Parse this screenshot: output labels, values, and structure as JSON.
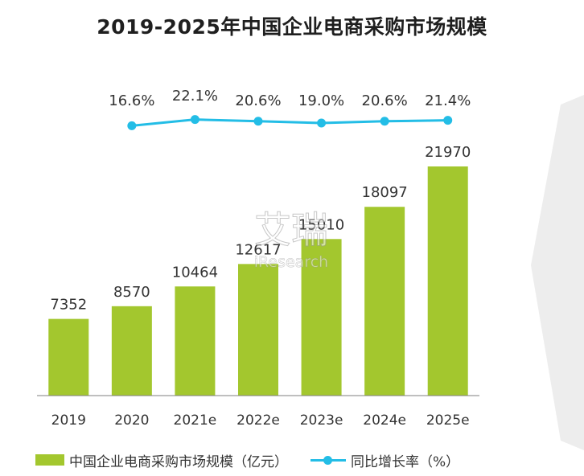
{
  "title": "2019-2025年中国企业电商采购市场规模",
  "legend": {
    "bar_label": "中国企业电商采购市场规模（亿元）",
    "line_label": "同比增长率（%）"
  },
  "watermark": {
    "main": "艾瑞",
    "sub": "iResearch"
  },
  "colors": {
    "bar": "#a3c72e",
    "line": "#23bde6",
    "axis": "#7f7f7f",
    "side_panel": "#ededed"
  },
  "chart_data": {
    "type": "bar",
    "title": "2019-2025年中国企业电商采购市场规模",
    "categories": [
      "2019",
      "2020",
      "2021e",
      "2022e",
      "2023e",
      "2024e",
      "2025e"
    ],
    "series": [
      {
        "name": "中国企业电商采购市场规模（亿元）",
        "type": "bar",
        "values": [
          7352,
          8570,
          10464,
          12617,
          15010,
          18097,
          21970
        ],
        "labels": [
          "7352",
          "8570",
          "10464",
          "12617",
          "15010",
          "18097",
          "21970"
        ]
      },
      {
        "name": "同比增长率（%）",
        "type": "line",
        "x": [
          "2020",
          "2021e",
          "2022e",
          "2023e",
          "2024e",
          "2025e"
        ],
        "values": [
          16.6,
          22.1,
          20.6,
          19.0,
          20.6,
          21.4
        ],
        "labels": [
          "16.6%",
          "22.1%",
          "20.6%",
          "19.0%",
          "20.6%",
          "21.4%"
        ]
      }
    ],
    "grid": false,
    "legend_position": "bottom"
  }
}
